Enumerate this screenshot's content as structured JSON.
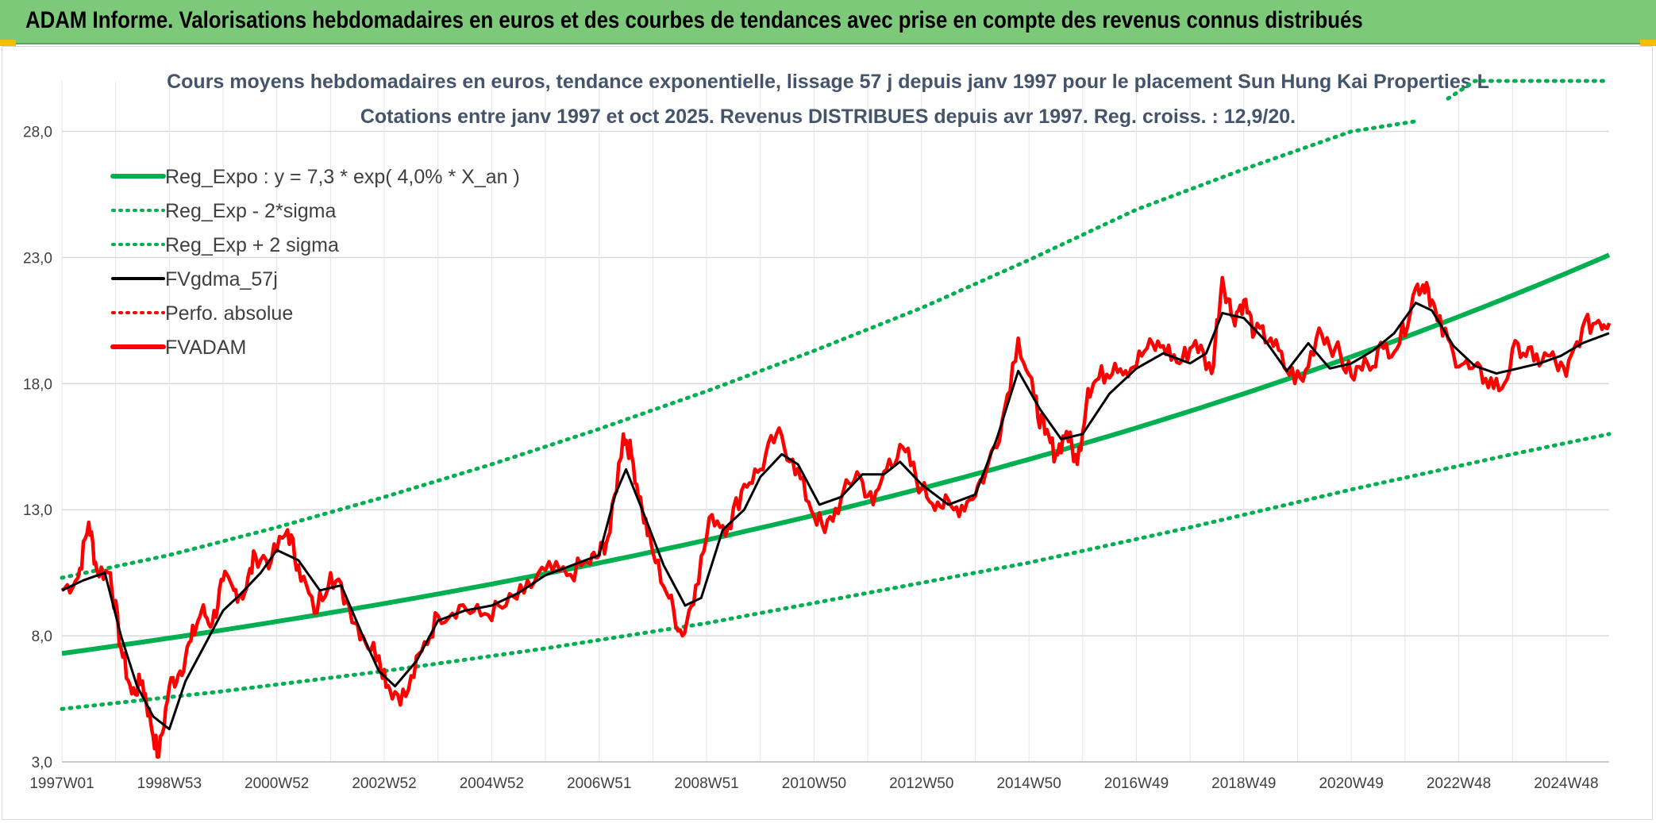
{
  "banner": {
    "title": "ADAM Informe. Valorisations hebdomadaires en euros et des courbes de tendances avec prise en compte des revenus connus distribués",
    "accent": "#7dc97a"
  },
  "chart_data": {
    "type": "line",
    "title": "Cours moyens hebdomadaires en euros, tendance exponentielle, lissage 57 j depuis janv 1997 pour le placement Sun Hung Kai Properties L",
    "subtitle": "Cotations entre janv 1997 et oct 2025. Revenus DISTRIBUES depuis avr 1997. Reg. croiss. : 12,9/20.",
    "xlabel": "",
    "ylabel": "",
    "ylim": [
      3,
      30
    ],
    "yticks": [
      "3,0",
      "8,0",
      "13,0",
      "18,0",
      "23,0",
      "28,0"
    ],
    "xticks": [
      "1997W01",
      "1998W53",
      "2000W52",
      "2002W52",
      "2004W52",
      "2006W51",
      "2008W51",
      "2010W50",
      "2012W50",
      "2014W50",
      "2016W49",
      "2018W49",
      "2020W49",
      "2022W48",
      "2024W48"
    ],
    "xrange": [
      1997.0,
      2025.8
    ],
    "legend_position": "top-left",
    "legend": [
      {
        "name": "Reg_Expo : y = 7,3 * exp( 4,0% *  X_an )",
        "color": "#00b050",
        "style": "solid-thick"
      },
      {
        "name": "Reg_Exp - 2*sigma",
        "color": "#00b050",
        "style": "dotted"
      },
      {
        "name": "Reg_Exp + 2 sigma",
        "color": "#00b050",
        "style": "dotted"
      },
      {
        "name": "FVgdma_57j",
        "color": "#000000",
        "style": "solid"
      },
      {
        "name": "Perfo. absolue",
        "color": "#ff0000",
        "style": "dotted"
      },
      {
        "name": "FVADAM",
        "color": "#ff0000",
        "style": "solid-thick"
      }
    ],
    "series": [
      {
        "name": "Reg_Expo",
        "a": 7.3,
        "rate": 0.04
      },
      {
        "name": "Reg_Exp - 2*sigma",
        "x": [
          1997,
          2000,
          2003,
          2006,
          2009,
          2012,
          2015,
          2018,
          2021,
          2024,
          2025.8
        ],
        "values": [
          5.1,
          5.8,
          6.6,
          7.5,
          8.5,
          9.7,
          10.9,
          12.3,
          13.8,
          15.2,
          16.0
        ]
      },
      {
        "name": "Reg_Exp + 2 sigma",
        "x": [
          1997,
          1999,
          2001,
          2003,
          2005,
          2007,
          2009,
          2011,
          2013,
          2015,
          2017,
          2019,
          2021,
          2022.2
        ],
        "values": [
          10.3,
          11.2,
          12.3,
          13.5,
          14.8,
          16.2,
          17.7,
          19.3,
          21.0,
          22.9,
          24.9,
          26.5,
          28.0,
          28.4
        ]
      },
      {
        "name": "Reg_Exp + 2 sigma (capped)",
        "x": [
          2022.8,
          2023.3,
          2025.8
        ],
        "values": [
          29.3,
          30.0,
          30.0
        ]
      },
      {
        "name": "FVADAM",
        "x": [
          1997.0,
          1997.3,
          1997.5,
          1997.65,
          1997.9,
          1998.1,
          1998.3,
          1998.5,
          1998.65,
          1998.8,
          1999.0,
          1999.2,
          1999.4,
          1999.6,
          1999.8,
          2000.0,
          2000.2,
          2000.4,
          2000.6,
          2000.9,
          2001.2,
          2001.4,
          2001.7,
          2002.0,
          2002.3,
          2002.6,
          2002.9,
          2003.1,
          2003.4,
          2003.7,
          2004.0,
          2004.4,
          2004.8,
          2005.2,
          2005.6,
          2006.0,
          2006.4,
          2006.8,
          2007.0,
          2007.2,
          2007.45,
          2007.6,
          2007.8,
          2008.0,
          2008.3,
          2008.55,
          2008.8,
          2009.1,
          2009.4,
          2009.7,
          2010.0,
          2010.3,
          2010.6,
          2010.9,
          2011.2,
          2011.5,
          2011.8,
          2012.1,
          2012.4,
          2012.7,
          2013.0,
          2013.3,
          2013.6,
          2013.9,
          2014.2,
          2014.5,
          2014.8,
          2015.1,
          2015.3,
          2015.5,
          2015.7,
          2015.9,
          2016.1,
          2016.3,
          2016.6,
          2016.9,
          2017.2,
          2017.5,
          2017.8,
          2018.1,
          2018.4,
          2018.6,
          2018.8,
          2019.0,
          2019.2,
          2019.5,
          2019.8,
          2020.1,
          2020.4,
          2020.7,
          2021.0,
          2021.3,
          2021.6,
          2021.9,
          2022.2,
          2022.4,
          2022.6,
          2022.9,
          2023.2,
          2023.5,
          2023.8,
          2024.1,
          2024.4,
          2024.7,
          2025.0,
          2025.3,
          2025.6,
          2025.8
        ],
        "values": [
          9.8,
          10.3,
          12.5,
          10.6,
          10.5,
          7.5,
          5.7,
          6.2,
          4.6,
          3.2,
          6.0,
          6.6,
          7.8,
          9.0,
          8.5,
          10.2,
          9.8,
          9.7,
          11.2,
          11.0,
          12.2,
          10.8,
          8.9,
          10.5,
          9.4,
          8.0,
          7.2,
          5.9,
          5.6,
          7.4,
          8.8,
          9.2,
          8.8,
          9.1,
          9.7,
          10.6,
          10.4,
          10.9,
          11.2,
          12.1,
          16.0,
          15.2,
          13.0,
          11.3,
          9.5,
          8.0,
          10.0,
          12.8,
          12.3,
          14.0,
          14.6,
          16.0,
          15.0,
          13.3,
          12.1,
          13.4,
          14.5,
          13.2,
          15.0,
          15.3,
          13.8,
          13.3,
          13.0,
          13.4,
          14.5,
          16.5,
          19.8,
          17.4,
          16.0,
          15.2,
          16.1,
          14.8,
          17.8,
          18.2,
          18.8,
          18.6,
          19.4,
          19.5,
          18.8,
          19.7,
          18.4,
          22.2,
          20.6,
          21.3,
          20.0,
          19.8,
          18.5,
          18.1,
          20.2,
          19.4,
          18.3,
          18.8,
          19.4,
          19.6,
          21.8,
          22.0,
          20.5,
          19.2,
          18.6,
          18.2,
          17.8,
          19.6,
          18.9,
          19.1,
          18.3,
          20.2,
          20.5,
          20.4
        ]
      },
      {
        "name": "FVgdma_57j",
        "x": [
          1997.0,
          1997.4,
          1997.8,
          1998.1,
          1998.4,
          1998.7,
          1999.0,
          1999.3,
          1999.7,
          2000.0,
          2000.3,
          2000.7,
          2001.0,
          2001.4,
          2001.8,
          2002.2,
          2002.6,
          2002.9,
          2003.2,
          2003.6,
          2004.0,
          2004.5,
          2005.0,
          2005.5,
          2006.0,
          2006.5,
          2007.0,
          2007.3,
          2007.5,
          2007.8,
          2008.2,
          2008.6,
          2008.9,
          2009.3,
          2009.7,
          2010.0,
          2010.4,
          2010.7,
          2011.1,
          2011.5,
          2011.9,
          2012.3,
          2012.6,
          2013.0,
          2013.5,
          2014.0,
          2014.4,
          2014.8,
          2015.2,
          2015.6,
          2016.0,
          2016.5,
          2017.0,
          2017.5,
          2018.0,
          2018.3,
          2018.6,
          2019.0,
          2019.4,
          2019.8,
          2020.2,
          2020.6,
          2021.0,
          2021.4,
          2021.8,
          2022.2,
          2022.5,
          2022.9,
          2023.3,
          2023.7,
          2024.1,
          2024.5,
          2024.9,
          2025.3,
          2025.8
        ],
        "values": [
          9.8,
          10.2,
          10.5,
          8.0,
          6.0,
          4.8,
          4.3,
          6.2,
          7.8,
          9.0,
          9.6,
          10.5,
          11.4,
          11.0,
          9.8,
          10.0,
          8.0,
          6.6,
          6.0,
          7.0,
          8.6,
          9.0,
          9.2,
          9.7,
          10.4,
          10.8,
          11.2,
          13.6,
          14.6,
          13.0,
          10.8,
          9.2,
          9.5,
          12.2,
          13.0,
          14.3,
          15.2,
          14.8,
          13.2,
          13.5,
          14.4,
          14.4,
          14.9,
          14.0,
          13.2,
          13.6,
          15.8,
          18.5,
          17.0,
          15.8,
          16.0,
          17.6,
          18.6,
          19.2,
          18.8,
          19.2,
          20.8,
          20.6,
          19.7,
          18.5,
          19.6,
          18.6,
          18.8,
          19.3,
          20.0,
          21.2,
          20.9,
          19.5,
          18.7,
          18.4,
          18.6,
          18.8,
          19.1,
          19.6,
          20.0
        ]
      }
    ]
  }
}
